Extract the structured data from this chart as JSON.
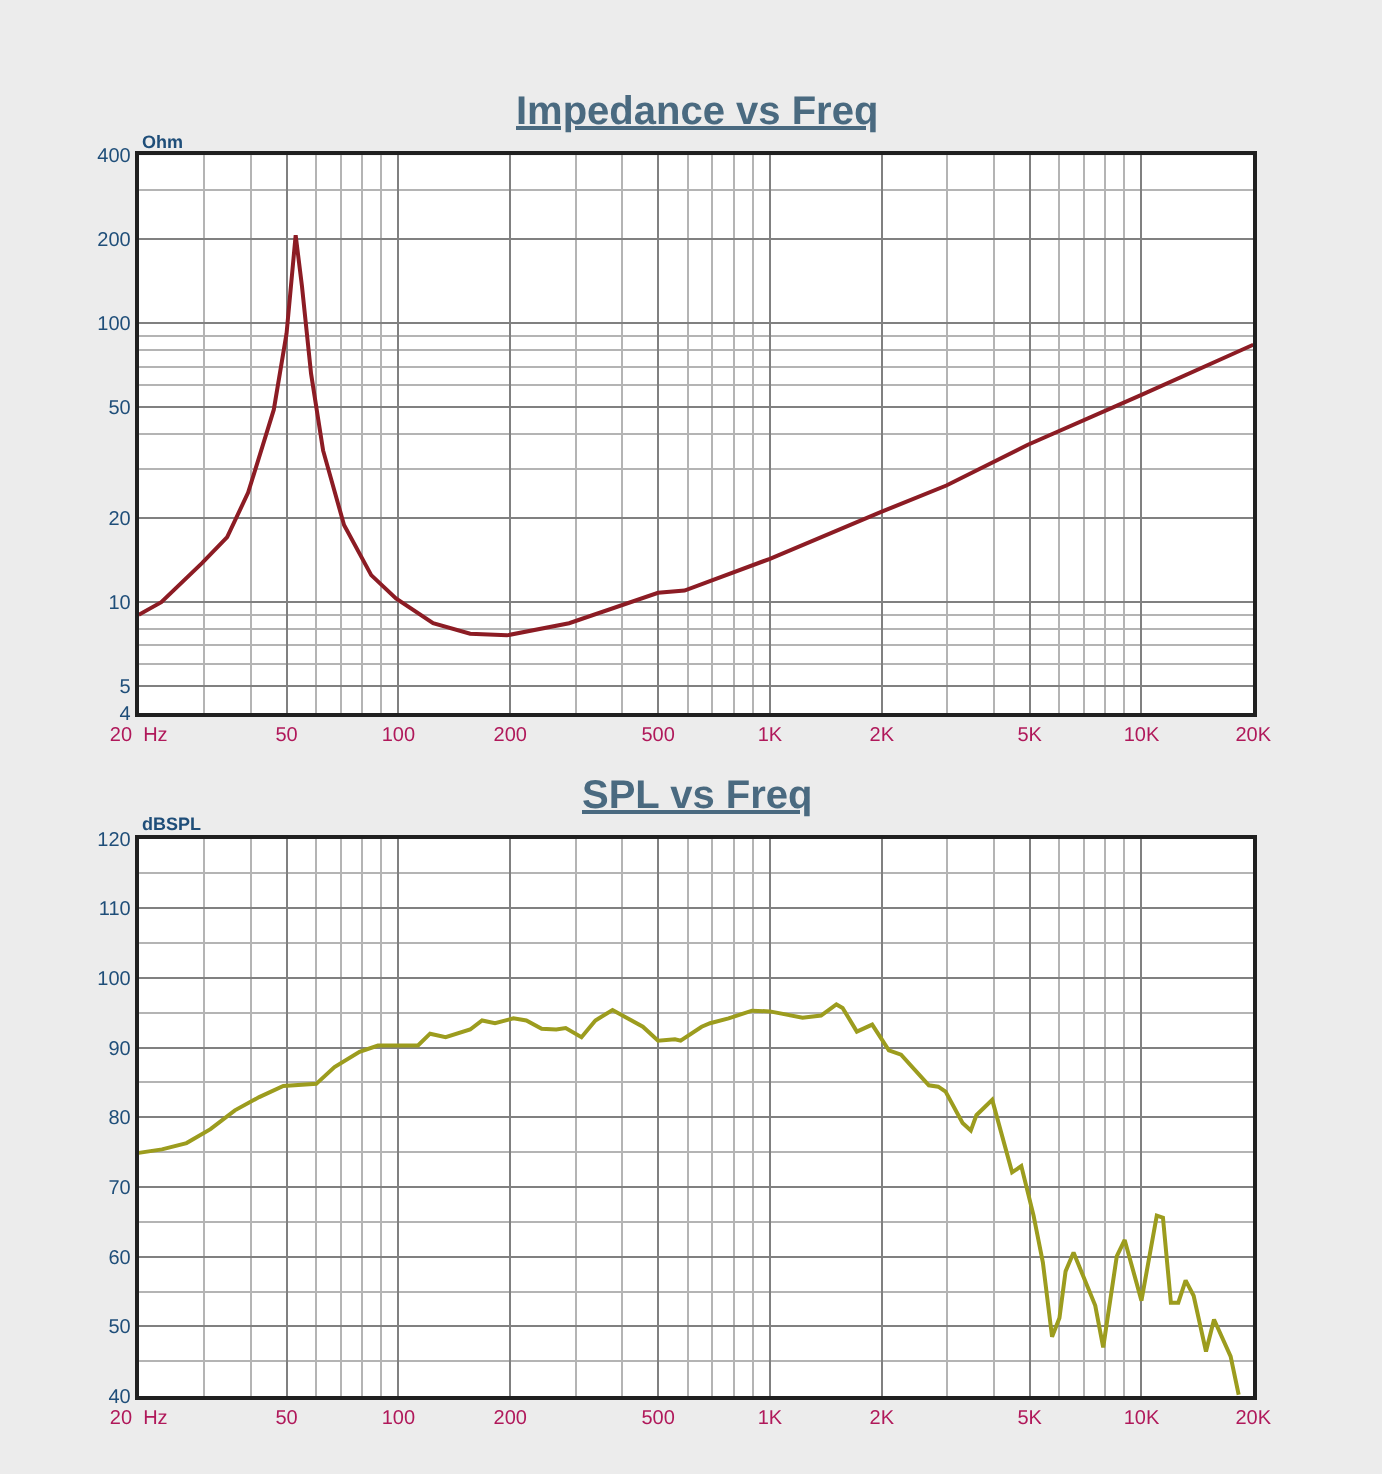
{
  "chart_data": [
    {
      "type": "line",
      "title": "Impedance vs Freq",
      "ylabel": "Ohm",
      "log": "xy",
      "grid": true,
      "xlim": [
        20,
        20000
      ],
      "ylim": [
        4,
        400
      ],
      "xticks": [
        {
          "value": 20,
          "label": "20  Hz"
        },
        50,
        100,
        200,
        500,
        {
          "value": 1000,
          "label": "1K"
        },
        {
          "value": 2000,
          "label": "2K"
        },
        {
          "value": 5000,
          "label": "5K"
        },
        {
          "value": 10000,
          "label": "10K"
        },
        {
          "value": 20000,
          "label": "20K"
        }
      ],
      "yticks": [
        4,
        5,
        10,
        20,
        50,
        100,
        200,
        400
      ],
      "series": [
        {
          "color": "#8c1c24",
          "x": [
            20,
            23,
            29.6,
            34.6,
            39.4,
            46.2,
            50,
            52.9,
            55,
            58.2,
            62.7,
            71.4,
            84.5,
            98.5,
            124,
            156,
            196,
            288,
            500,
            589,
            1000,
            2000,
            2985,
            4930,
            10000,
            20000
          ],
          "values": [
            9.0,
            10.0,
            13.8,
            17.1,
            24.7,
            49,
            92,
            207,
            136,
            66,
            35,
            18.9,
            12.5,
            10.3,
            8.4,
            7.7,
            7.6,
            8.4,
            10.8,
            11.0,
            14.3,
            21.1,
            26.2,
            36.6,
            55.4,
            83.8
          ]
        }
      ]
    },
    {
      "type": "line",
      "title": "SPL vs Freq",
      "ylabel": "dBSPL",
      "log": "x",
      "grid": true,
      "xlim": [
        20,
        20000
      ],
      "ylim": [
        40,
        120
      ],
      "xticks": [
        {
          "value": 20,
          "label": "20  Hz"
        },
        50,
        100,
        200,
        500,
        {
          "value": 1000,
          "label": "1K"
        },
        {
          "value": 2000,
          "label": "2K"
        },
        {
          "value": 5000,
          "label": "5K"
        },
        {
          "value": 10000,
          "label": "10K"
        },
        {
          "value": 20000,
          "label": "20K"
        }
      ],
      "yticks": [
        40,
        50,
        60,
        70,
        80,
        90,
        100,
        110,
        120
      ],
      "series": [
        {
          "color": "#9c9c1e",
          "x": [
            20,
            23.1,
            26.9,
            31.2,
            36.3,
            42.2,
            49,
            60.1,
            67.3,
            78.6,
            88.1,
            106.6,
            112.9,
            121.7,
            134,
            156,
            168,
            182,
            204,
            221,
            243,
            266,
            282,
            311,
            339,
            377,
            455,
            500,
            555,
            575,
            655,
            690,
            774,
            895,
            1000,
            1224,
            1373,
            1510,
            1569,
            1714,
            1885,
            2090,
            2254,
            2678,
            2838,
            2970,
            3300,
            3473,
            3595,
            3966,
            4486,
            4749,
            5125,
            5428,
            5747,
            6016,
            6249,
            6566,
            7510,
            7890,
            8585,
            9013,
            10000,
            10997,
            11427,
            12002,
            12565,
            13150,
            13820,
            14920,
            15680,
            17380,
            18270
          ],
          "values": [
            74.9,
            75.4,
            76.3,
            78.3,
            81.0,
            82.9,
            84.5,
            84.8,
            87.2,
            89.4,
            90.3,
            90.3,
            90.3,
            92.0,
            91.5,
            92.6,
            93.9,
            93.5,
            94.2,
            93.9,
            92.7,
            92.6,
            92.8,
            91.5,
            93.9,
            95.4,
            93.0,
            91.0,
            91.2,
            91.0,
            93.0,
            93.5,
            94.2,
            95.3,
            95.2,
            94.3,
            94.6,
            96.2,
            95.7,
            92.3,
            93.3,
            89.6,
            89.0,
            84.6,
            84.4,
            83.7,
            79.2,
            78.1,
            80.3,
            82.5,
            72.1,
            73.0,
            65.9,
            59.2,
            48.5,
            51.2,
            57.9,
            60.6,
            53.0,
            47.0,
            60.1,
            62.4,
            53.7,
            65.9,
            65.6,
            53.4,
            53.4,
            56.6,
            54.4,
            46.4,
            51.0,
            45.7,
            40.2
          ]
        }
      ]
    }
  ]
}
